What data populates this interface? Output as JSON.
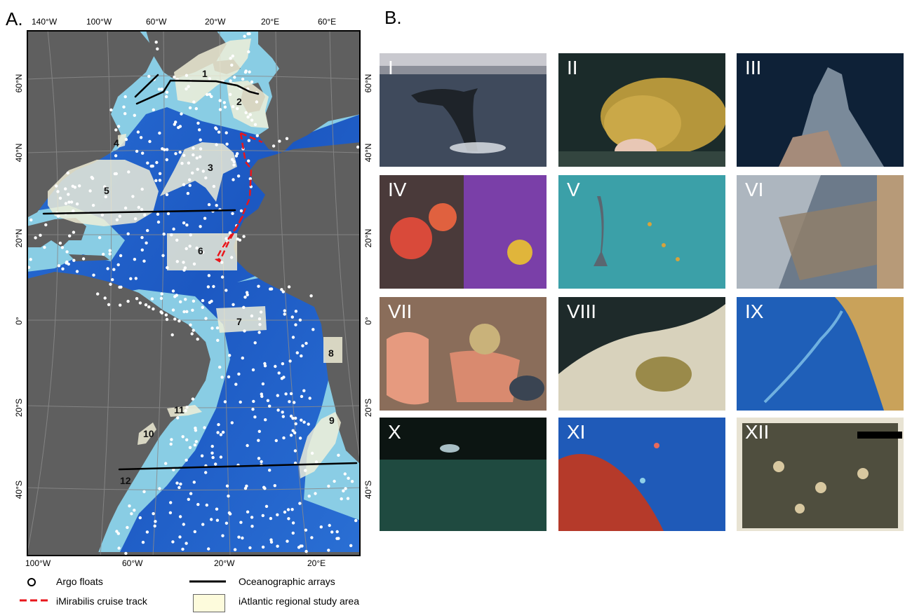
{
  "panel_a": {
    "letter": "A.",
    "top_lon_labels": [
      "140°W",
      "100°W",
      "60°W",
      "20°W",
      "20°E",
      "60°E"
    ],
    "bottom_lon_labels": [
      "100°W",
      "60°W",
      "20°W",
      "20°E"
    ],
    "lat_labels": [
      "60°N",
      "40°N",
      "20°N",
      "0°",
      "20°S",
      "40°S"
    ],
    "region_numbers": [
      "1",
      "2",
      "3",
      "4",
      "5",
      "6",
      "7",
      "8",
      "9",
      "10",
      "11",
      "12"
    ],
    "colors": {
      "land": "#5f5f5f",
      "ocean_deep": "#1f60c8",
      "ocean_shelf": "#8fd3e6",
      "study_area": "#f3f0d8",
      "array_line": "#000000",
      "cruise_track": "#e8161b",
      "argo_float": "#ffffff"
    }
  },
  "panel_b": {
    "letter": "B.",
    "photos": [
      {
        "label": "I",
        "icon": "breaching-whale-photo"
      },
      {
        "label": "II",
        "icon": "gorgonian-coral-photo"
      },
      {
        "label": "III",
        "icon": "hydrothermal-chimney-photo"
      },
      {
        "label": "IV",
        "icon": "anemone-sponge-photo"
      },
      {
        "label": "V",
        "icon": "whale-aerial-photo"
      },
      {
        "label": "VI",
        "icon": "dust-satellite-photo"
      },
      {
        "label": "VII",
        "icon": "trawl-catch-photo"
      },
      {
        "label": "VIII",
        "icon": "white-coral-reef-photo"
      },
      {
        "label": "IX",
        "icon": "bathymetry-relief-photo"
      },
      {
        "label": "X",
        "icon": "dark-seafloor-photo"
      },
      {
        "label": "XI",
        "icon": "reef-fish-photo"
      },
      {
        "label": "XII",
        "icon": "sediment-core-photo"
      }
    ]
  },
  "legend": {
    "argo": "Argo floats",
    "cruise": "iMirabilis cruise track",
    "arrays": "Oceanographic arrays",
    "study": "iAtlantic regional study area"
  }
}
